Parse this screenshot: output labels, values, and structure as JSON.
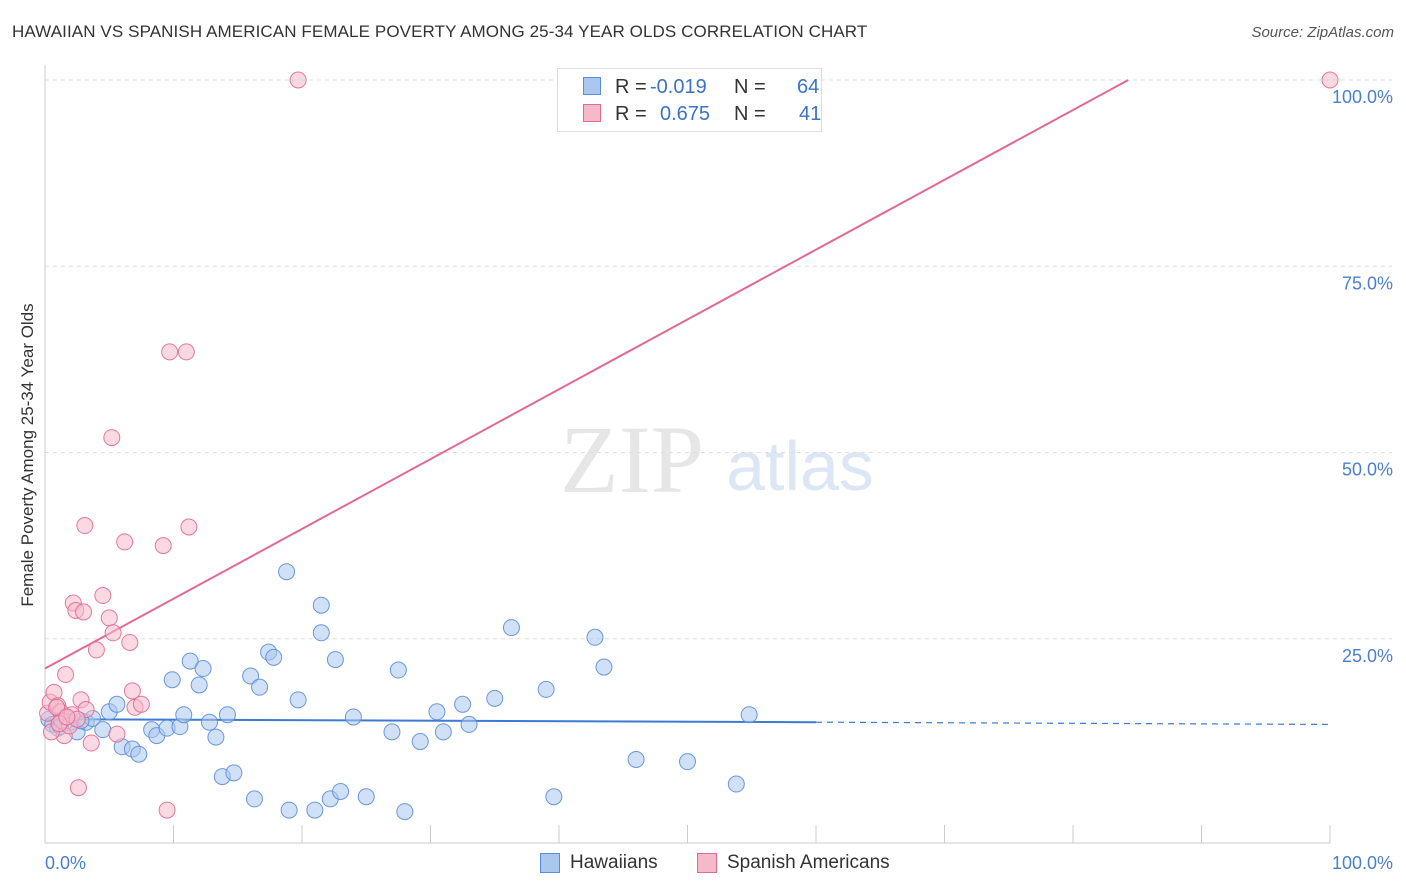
{
  "title": "HAWAIIAN VS SPANISH AMERICAN FEMALE POVERTY AMONG 25-34 YEAR OLDS CORRELATION CHART",
  "source": "Source: ZipAtlas.com",
  "watermark": {
    "zip": "ZIP",
    "atlas": "atlas"
  },
  "legend": {
    "rows": [
      {
        "r_label": "R =",
        "r_value": "-0.019",
        "n_label": "N =",
        "n_value": "64"
      },
      {
        "r_label": "R =",
        "r_value": "0.675",
        "n_label": "N =",
        "n_value": "41"
      }
    ]
  },
  "chart_data": {
    "type": "scatter",
    "title": "HAWAIIAN VS SPANISH AMERICAN FEMALE POVERTY AMONG 25-34 YEAR OLDS CORRELATION CHART",
    "xlabel": "",
    "ylabel": "Female Poverty Among 25-34 Year Olds",
    "xlim": [
      0,
      100
    ],
    "ylim": [
      0,
      100
    ],
    "x_tick_labels": [
      {
        "value": 0,
        "label": "0.0%"
      },
      {
        "value": 100,
        "label": "100.0%"
      }
    ],
    "y_tick_labels": [
      {
        "value": 25,
        "label": "25.0%"
      },
      {
        "value": 50,
        "label": "50.0%"
      },
      {
        "value": 75,
        "label": "75.0%"
      },
      {
        "value": 100,
        "label": "100.0%"
      }
    ],
    "x_minor_ticks": [
      0,
      10,
      20,
      30,
      40,
      50,
      60,
      70,
      80,
      90,
      100
    ],
    "y_gridlines": [
      25,
      50,
      75,
      100
    ],
    "series": [
      {
        "name": "Hawaiians",
        "color": "#5b8ed8",
        "fill": "#a9c7ef",
        "R": -0.019,
        "N": 64,
        "trend": {
          "x0": 0,
          "y0": 14.2,
          "x1": 60,
          "y1": 13.8,
          "dash_x1": 100,
          "dash_y1": 13.5
        },
        "points": [
          [
            0.3,
            14.2
          ],
          [
            0.6,
            13.5
          ],
          [
            1.0,
            13.0
          ],
          [
            1.5,
            14.5
          ],
          [
            2.0,
            13.8
          ],
          [
            2.5,
            12.5
          ],
          [
            3.2,
            13.8
          ],
          [
            3.7,
            14.3
          ],
          [
            4.5,
            12.8
          ],
          [
            5.0,
            15.2
          ],
          [
            5.6,
            16.2
          ],
          [
            6.0,
            10.5
          ],
          [
            6.8,
            10.2
          ],
          [
            7.3,
            9.5
          ],
          [
            8.3,
            12.8
          ],
          [
            8.7,
            12.0
          ],
          [
            9.5,
            13.0
          ],
          [
            9.9,
            19.5
          ],
          [
            10.5,
            13.2
          ],
          [
            10.8,
            14.8
          ],
          [
            11.3,
            22.0
          ],
          [
            12.0,
            18.8
          ],
          [
            12.3,
            21.0
          ],
          [
            12.8,
            13.8
          ],
          [
            13.3,
            11.8
          ],
          [
            13.8,
            6.5
          ],
          [
            14.2,
            14.8
          ],
          [
            14.7,
            7.0
          ],
          [
            16.0,
            20.0
          ],
          [
            16.3,
            3.5
          ],
          [
            16.7,
            18.5
          ],
          [
            17.4,
            23.2
          ],
          [
            17.8,
            22.5
          ],
          [
            18.8,
            34.0
          ],
          [
            19.0,
            2.0
          ],
          [
            19.7,
            16.8
          ],
          [
            21.0,
            2.0
          ],
          [
            21.5,
            29.5
          ],
          [
            22.2,
            3.5
          ],
          [
            22.6,
            22.2
          ],
          [
            21.5,
            25.8
          ],
          [
            23.0,
            4.5
          ],
          [
            24.0,
            14.5
          ],
          [
            25.0,
            3.8
          ],
          [
            27.0,
            12.5
          ],
          [
            27.5,
            20.8
          ],
          [
            28.0,
            1.8
          ],
          [
            29.2,
            11.2
          ],
          [
            30.5,
            15.2
          ],
          [
            31.0,
            12.5
          ],
          [
            32.5,
            16.2
          ],
          [
            33.0,
            13.5
          ],
          [
            35.0,
            17.0
          ],
          [
            36.3,
            26.5
          ],
          [
            39.0,
            18.2
          ],
          [
            39.6,
            3.8
          ],
          [
            42.8,
            25.2
          ],
          [
            43.5,
            21.2
          ],
          [
            46.0,
            8.8
          ],
          [
            50.0,
            8.5
          ],
          [
            53.8,
            5.5
          ],
          [
            54.8,
            14.8
          ],
          [
            1.2,
            13.2
          ],
          [
            2.8,
            14.0
          ]
        ]
      },
      {
        "name": "Spanish Americans",
        "color": "#e06a92",
        "fill": "#f6b9cc",
        "R": 0.675,
        "N": 41,
        "trend": {
          "x0": 0,
          "y0": 21.0,
          "x1": 84.3,
          "y1": 100
        },
        "points": [
          [
            0.2,
            15.0
          ],
          [
            0.4,
            16.5
          ],
          [
            0.7,
            17.8
          ],
          [
            1.0,
            16.0
          ],
          [
            1.2,
            15.2
          ],
          [
            1.3,
            14.0
          ],
          [
            1.5,
            12.0
          ],
          [
            1.6,
            20.2
          ],
          [
            1.9,
            13.3
          ],
          [
            2.1,
            14.8
          ],
          [
            2.2,
            29.8
          ],
          [
            2.4,
            28.8
          ],
          [
            2.6,
            5.0
          ],
          [
            2.8,
            16.8
          ],
          [
            3.0,
            28.6
          ],
          [
            3.2,
            15.5
          ],
          [
            3.6,
            11.0
          ],
          [
            3.1,
            40.2
          ],
          [
            4.5,
            30.8
          ],
          [
            5.0,
            27.8
          ],
          [
            5.2,
            52.0
          ],
          [
            5.3,
            25.8
          ],
          [
            5.6,
            12.2
          ],
          [
            6.2,
            38.0
          ],
          [
            6.6,
            24.5
          ],
          [
            6.8,
            18.0
          ],
          [
            7.0,
            15.8
          ],
          [
            7.5,
            16.2
          ],
          [
            9.2,
            37.5
          ],
          [
            9.5,
            2.0
          ],
          [
            9.7,
            63.5
          ],
          [
            11.0,
            63.5
          ],
          [
            11.2,
            40.0
          ],
          [
            19.7,
            100.0
          ],
          [
            100.0,
            100.0
          ],
          [
            0.5,
            12.5
          ],
          [
            0.9,
            15.8
          ],
          [
            2.5,
            14.2
          ],
          [
            1.1,
            13.6
          ],
          [
            4.0,
            23.5
          ],
          [
            1.7,
            14.5
          ]
        ]
      }
    ]
  }
}
